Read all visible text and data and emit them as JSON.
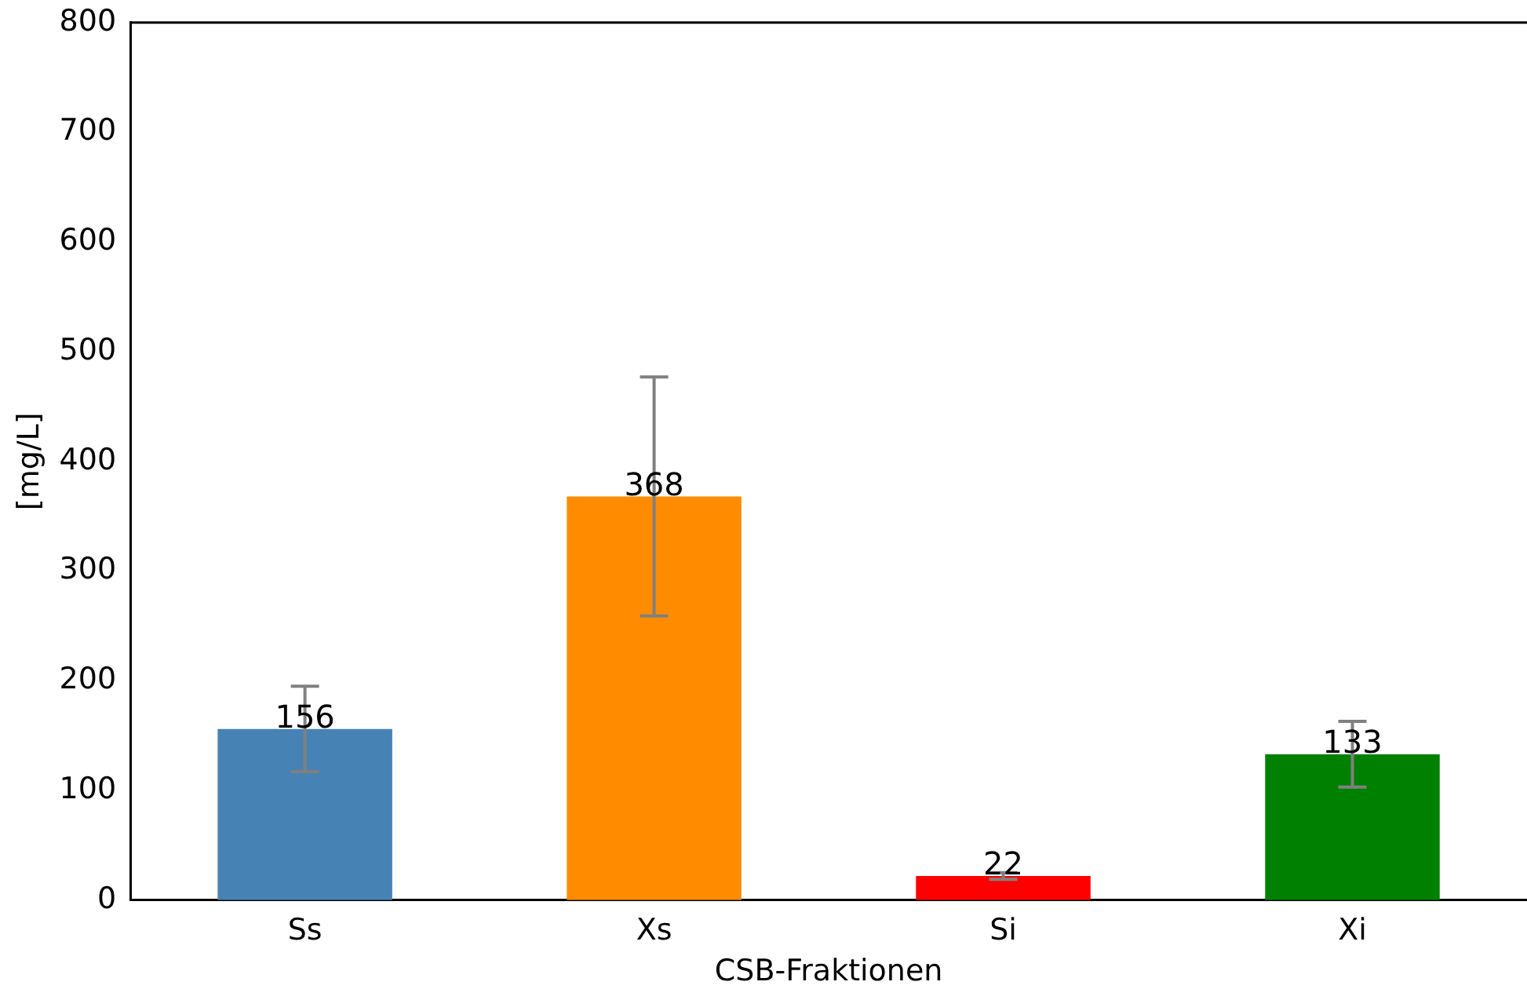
{
  "chart_data": {
    "type": "bar",
    "xlabel": "CSB-Fraktionen",
    "ylabel": "[mg/L]",
    "categories": [
      "Ss",
      "Xs",
      "Si",
      "Xi"
    ],
    "values": [
      156,
      368,
      22,
      133
    ],
    "colors": [
      "#4682b4",
      "#ff8c00",
      "#ff0000",
      "#008000"
    ],
    "errors": [
      39,
      109,
      3,
      30
    ],
    "data_labels": true,
    "ylim": [
      0,
      800
    ],
    "yticks": [
      0,
      100,
      200,
      300,
      400,
      500,
      600,
      700,
      800
    ],
    "grid": false,
    "legend": false
  }
}
